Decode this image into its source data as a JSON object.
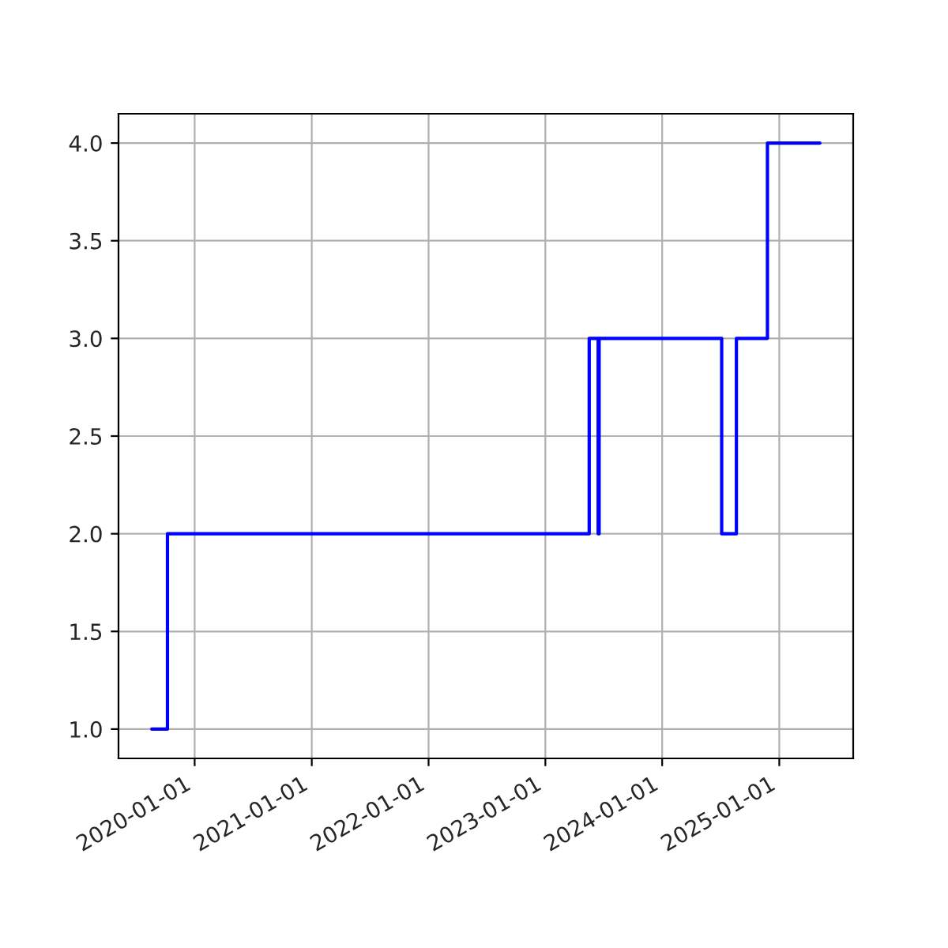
{
  "chart_data": {
    "type": "step",
    "x": [
      "2019-08-20",
      "2019-10-08",
      "2023-05-18",
      "2023-06-15",
      "2023-06-18",
      "2024-07-05",
      "2024-08-20",
      "2024-11-25",
      "2025-05-08"
    ],
    "series": [
      {
        "color": "#0000ff",
        "values": [
          1,
          2,
          3,
          2,
          3,
          2,
          3,
          4,
          4
        ]
      }
    ],
    "xlim": [
      "2019-05-08",
      "2025-08-20"
    ],
    "xticks": [
      {
        "value": "2020-01-01",
        "label": "2020-01-01"
      },
      {
        "value": "2021-01-01",
        "label": "2021-01-01"
      },
      {
        "value": "2022-01-01",
        "label": "2022-01-01"
      },
      {
        "value": "2023-01-01",
        "label": "2023-01-01"
      },
      {
        "value": "2024-01-01",
        "label": "2024-01-01"
      },
      {
        "value": "2025-01-01",
        "label": "2025-01-01"
      }
    ],
    "ylim": [
      0.85,
      4.15
    ],
    "yticks": [
      {
        "value": 1,
        "label": "1.0"
      },
      {
        "value": 1.5,
        "label": "1.5"
      },
      {
        "value": 2,
        "label": "2.0"
      },
      {
        "value": 2.5,
        "label": "2.5"
      },
      {
        "value": 3,
        "label": "3.0"
      },
      {
        "value": 3.5,
        "label": "3.5"
      },
      {
        "value": 4,
        "label": "4.0"
      }
    ],
    "grid": true
  }
}
